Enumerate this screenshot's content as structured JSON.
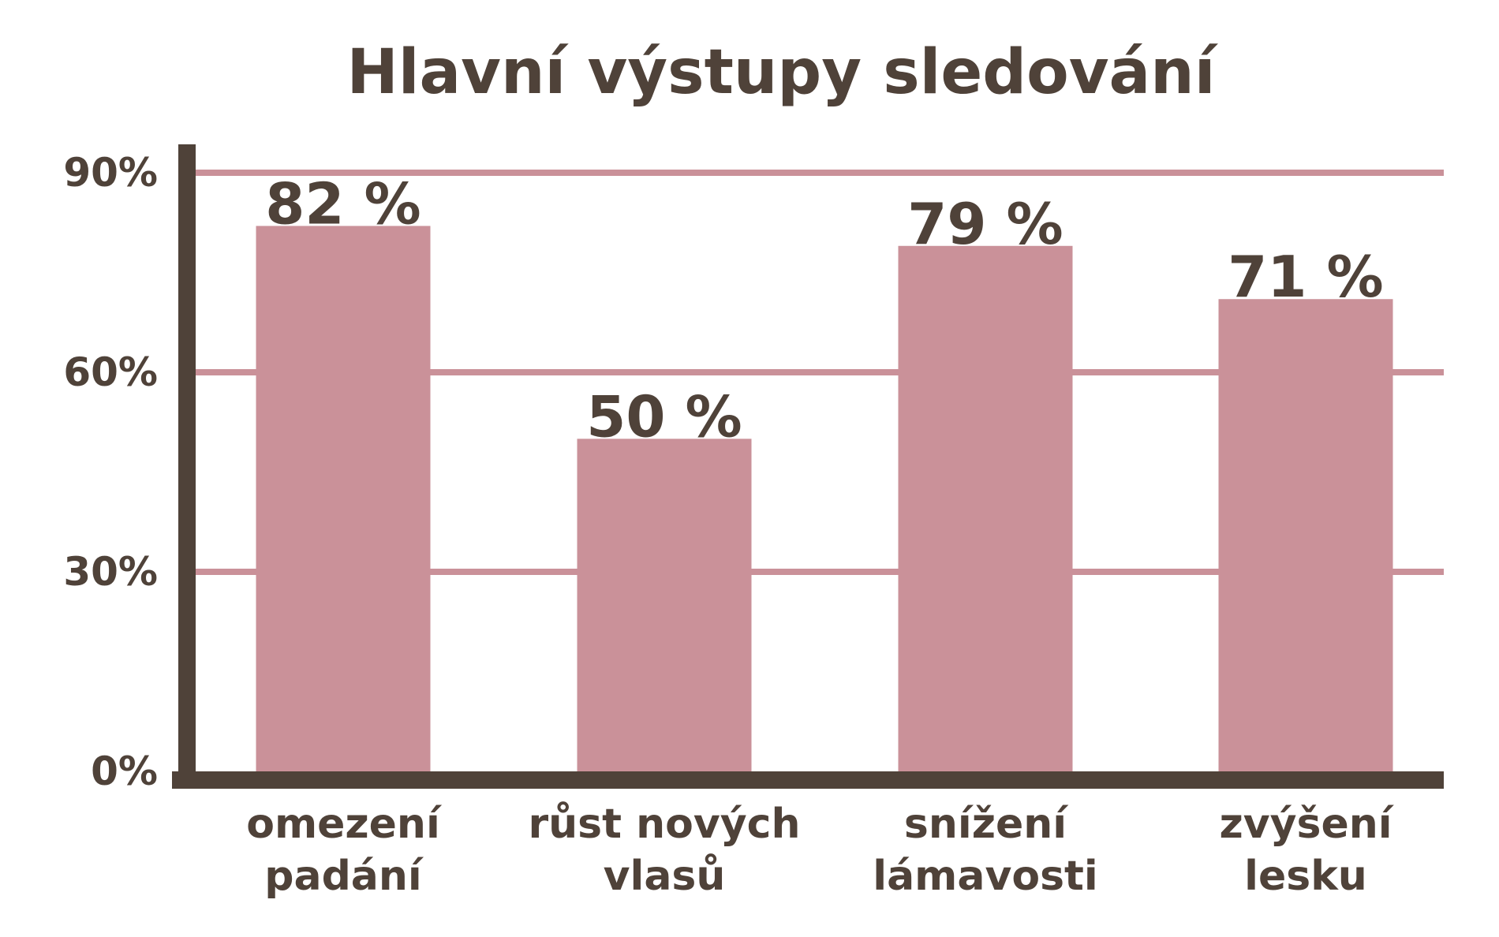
{
  "chart_data": {
    "type": "bar",
    "title": "Hlavní výstupy sledování",
    "categories": [
      [
        "omezení",
        "padání"
      ],
      [
        "růst nových",
        "vlasů"
      ],
      [
        "snížení",
        "lámavosti"
      ],
      [
        "zvýšení",
        "lesku"
      ]
    ],
    "values": [
      82,
      50,
      79,
      71
    ],
    "value_labels": [
      "82 %",
      "50 %",
      "79 %",
      "71 %"
    ],
    "yticks": [
      0,
      30,
      60,
      90
    ],
    "ytick_labels": [
      "0%",
      "30%",
      "60%",
      "90%"
    ],
    "ylim": [
      0,
      90
    ],
    "grid": true,
    "xlabel": "",
    "ylabel": "",
    "colors": {
      "bar": "#ca9199",
      "grid": "#ca9199",
      "axis": "#4f4239",
      "text": "#4f4239"
    }
  }
}
